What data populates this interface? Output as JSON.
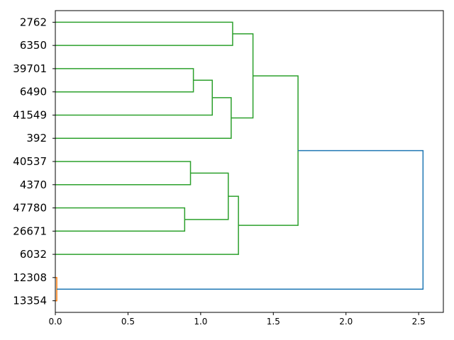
{
  "chart_data": {
    "type": "dendrogram",
    "orientation": "horizontal",
    "title": "",
    "xlabel": "",
    "ylabel": "",
    "xlim": [
      0.0,
      2.67
    ],
    "x_ticks": [
      {
        "value": 0.0,
        "label": "0.0"
      },
      {
        "value": 0.5,
        "label": "0.5"
      },
      {
        "value": 1.0,
        "label": "1.0"
      },
      {
        "value": 1.5,
        "label": "1.5"
      },
      {
        "value": 2.0,
        "label": "2.0"
      },
      {
        "value": 2.5,
        "label": "2.5"
      }
    ],
    "grid": false,
    "leaves": [
      "2762",
      "6350",
      "39701",
      "6490",
      "41549",
      "392",
      "40537",
      "4370",
      "47780",
      "26671",
      "6032",
      "12308",
      "13354"
    ],
    "links": [
      {
        "left": "2762",
        "right": "6350",
        "height": 1.22,
        "color": "#2ca02c"
      },
      {
        "left": "39701",
        "right": "6490",
        "height": 0.95,
        "color": "#2ca02c"
      },
      {
        "left": "39701+6490",
        "right": "41549",
        "height": 1.08,
        "color": "#2ca02c"
      },
      {
        "left": "39701+6490+41549",
        "right": "392",
        "height": 1.21,
        "color": "#2ca02c"
      },
      {
        "left": "2762+6350",
        "right": "39701+6490+41549+392",
        "height": 1.36,
        "color": "#2ca02c"
      },
      {
        "left": "40537",
        "right": "4370",
        "height": 0.93,
        "color": "#2ca02c"
      },
      {
        "left": "47780",
        "right": "26671",
        "height": 0.89,
        "color": "#2ca02c"
      },
      {
        "left": "40537+4370",
        "right": "47780+26671",
        "height": 1.19,
        "color": "#2ca02c"
      },
      {
        "left": "40537+4370+47780+26671",
        "right": "6032",
        "height": 1.26,
        "color": "#2ca02c"
      },
      {
        "left": "2762+6350+39701+6490+41549+392",
        "right": "40537+4370+47780+26671+6032",
        "height": 1.67,
        "color": "#2ca02c"
      },
      {
        "left": "12308",
        "right": "13354",
        "height": 0.01,
        "color": "#ff7f0e"
      },
      {
        "left": "2762+6350+39701+6490+41549+392+40537+4370+47780+26671+6032",
        "right": "12308+13354",
        "height": 2.53,
        "color": "#1f77b4"
      }
    ]
  }
}
